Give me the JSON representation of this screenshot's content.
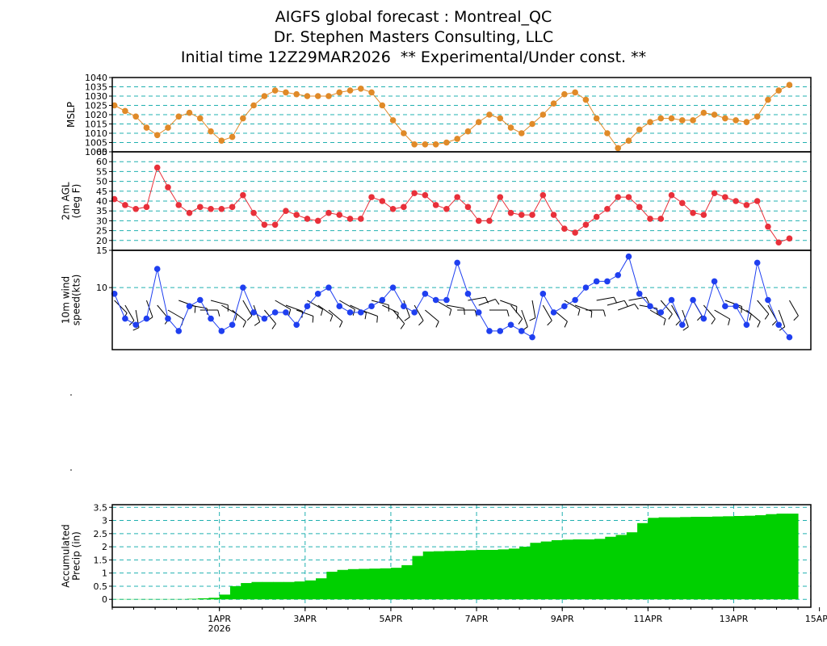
{
  "header": {
    "line1": "AIGFS global forecast : Montreal_QC",
    "line2": "Dr. Stephen Masters Consulting, LLC",
    "line3": "Initial time 12Z29MAR2026  ** Experimental/Under const. **"
  },
  "colors": {
    "mslp": "#e08a28",
    "temp": "#e8303a",
    "wind": "#1f3ff0",
    "precip": "#00d000",
    "grid": "#20b0b0"
  },
  "time_axis": {
    "tick_labels": [
      "1APR",
      "3APR",
      "5APR",
      "7APR",
      "9APR",
      "11APR",
      "13APR",
      "15APR"
    ],
    "year_label": "2026",
    "range_days": [
      0,
      16.3
    ],
    "tick_days": [
      2.5,
      4.5,
      6.5,
      8.5,
      10.5,
      12.5,
      14.5,
      16.5
    ]
  },
  "chart_data": [
    {
      "type": "line",
      "panel": "mslp",
      "ylabel": "MSLP",
      "ylim": [
        1000,
        1040
      ],
      "yticks": [
        "1000",
        "1005",
        "1010",
        "1015",
        "1020",
        "1025",
        "1030",
        "1035",
        "1040"
      ],
      "grid": true,
      "x_step_days": 0.25,
      "values": [
        1025,
        1022,
        1019,
        1013,
        1009,
        1013,
        1019,
        1021,
        1018,
        1011,
        1006,
        1008,
        1018,
        1025,
        1030,
        1033,
        1032,
        1031,
        1030,
        1030,
        1030,
        1032,
        1033,
        1034,
        1032,
        1025,
        1017,
        1010,
        1004,
        1004,
        1004,
        1005,
        1007,
        1011,
        1016,
        1020,
        1018,
        1013,
        1010,
        1015,
        1020,
        1026,
        1031,
        1032,
        1028,
        1018,
        1010,
        1002,
        1006,
        1012,
        1016,
        1018,
        1018,
        1017,
        1017,
        1021,
        1020,
        1018,
        1017,
        1016,
        1019,
        1028,
        1033,
        1036
      ]
    },
    {
      "type": "line",
      "panel": "temp",
      "ylabel": "2m AGL (deg F)",
      "ylim": [
        15,
        65
      ],
      "yticks": [
        "15",
        "20",
        "25",
        "30",
        "35",
        "40",
        "45",
        "50",
        "55",
        "60",
        "65"
      ],
      "grid": true,
      "x_step_days": 0.25,
      "values": [
        41,
        38,
        36,
        37,
        57,
        47,
        38,
        34,
        37,
        36,
        36,
        37,
        43,
        34,
        28,
        28,
        35,
        33,
        31,
        30,
        34,
        33,
        31,
        31,
        42,
        40,
        36,
        37,
        44,
        43,
        38,
        36,
        42,
        37,
        30,
        30,
        42,
        34,
        33,
        33,
        43,
        33,
        26,
        24,
        28,
        32,
        36,
        42,
        42,
        37,
        31,
        31,
        43,
        39,
        34,
        33,
        44,
        42,
        40,
        38,
        40,
        27,
        19,
        21
      ]
    },
    {
      "type": "line",
      "panel": "wind",
      "ylabel": "10m wind speed(kts)",
      "ylim": [
        0,
        16
      ],
      "yticks": [
        "10"
      ],
      "grid": true,
      "x_step_days": 0.25,
      "values": [
        9,
        5,
        4,
        5,
        13,
        5,
        3,
        7,
        8,
        5,
        3,
        4,
        10,
        6,
        5,
        6,
        6,
        4,
        7,
        9,
        10,
        7,
        6,
        6,
        7,
        8,
        10,
        7,
        6,
        9,
        8,
        8,
        14,
        9,
        6,
        3,
        3,
        4,
        3,
        2,
        9,
        6,
        7,
        8,
        10,
        11,
        11,
        12,
        15,
        9,
        7,
        6,
        8,
        4,
        8,
        5,
        11,
        7,
        7,
        4,
        14,
        8,
        4,
        2
      ],
      "barb_dirs_deg": [
        315,
        330,
        350,
        340,
        320,
        300,
        290,
        280,
        270,
        285,
        300,
        310,
        330,
        340,
        320,
        300,
        290,
        290,
        300,
        305,
        310,
        300,
        295,
        290,
        285,
        295,
        320,
        340,
        330,
        310,
        300,
        280,
        270,
        260,
        250,
        270,
        290,
        320,
        340,
        350,
        330,
        310,
        300,
        290,
        270,
        260,
        255,
        250,
        260,
        280,
        300,
        320,
        330,
        340,
        330,
        320,
        300,
        290,
        300,
        310,
        320,
        330,
        340,
        330
      ]
    },
    {
      "type": "area",
      "panel": "precip",
      "ylabel": "Accumulated Precip (in)",
      "ylim": [
        -0.3,
        3.6
      ],
      "yticks": [
        "0",
        "0.5",
        "1",
        "1.5",
        "2",
        "2.5",
        "3",
        "3.5"
      ],
      "grid": true,
      "x_step_days": 0.25,
      "values": [
        0.01,
        0.01,
        0.01,
        0.01,
        0.01,
        0.01,
        0.01,
        0.02,
        0.04,
        0.06,
        0.18,
        0.5,
        0.62,
        0.66,
        0.66,
        0.66,
        0.66,
        0.68,
        0.72,
        0.8,
        1.05,
        1.12,
        1.15,
        1.16,
        1.17,
        1.18,
        1.2,
        1.3,
        1.65,
        1.82,
        1.83,
        1.84,
        1.85,
        1.87,
        1.88,
        1.88,
        1.9,
        1.93,
        2.0,
        2.15,
        2.2,
        2.25,
        2.27,
        2.28,
        2.28,
        2.3,
        2.38,
        2.45,
        2.55,
        2.9,
        3.1,
        3.12,
        3.12,
        3.13,
        3.14,
        3.14,
        3.15,
        3.16,
        3.17,
        3.18,
        3.2,
        3.24,
        3.26,
        3.26
      ]
    }
  ]
}
